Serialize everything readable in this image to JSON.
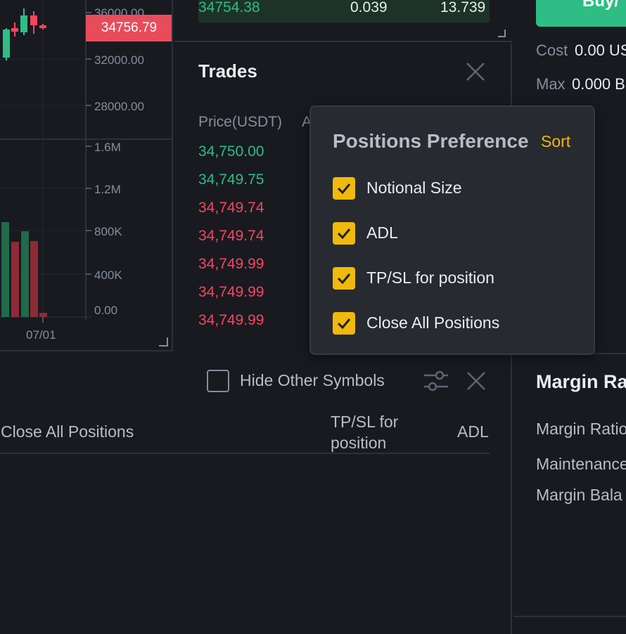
{
  "chart": {
    "price_axis": [
      "36000.00",
      "32000.00",
      "28000.00"
    ],
    "volume_axis": [
      "1.6M",
      "1.2M",
      "800K",
      "400K",
      "0.00"
    ],
    "time_label": "07/01",
    "last_price": "34756.79",
    "colors": {
      "up": "#2ebd85",
      "down": "#f6465d",
      "tag": "#e84c5b"
    }
  },
  "order_book": {
    "row": {
      "price": "34754.38",
      "amount": "0.039",
      "total": "13.739"
    }
  },
  "trades": {
    "title": "Trades",
    "header_price": "Price(USDT)",
    "header_amount": "A",
    "rows": [
      {
        "price": "34,750.00",
        "side": "up"
      },
      {
        "price": "34,749.75",
        "side": "up"
      },
      {
        "price": "34,749.74",
        "side": "down"
      },
      {
        "price": "34,749.74",
        "side": "down"
      },
      {
        "price": "34,749.99",
        "side": "down"
      },
      {
        "price": "34,749.99",
        "side": "down"
      },
      {
        "price": "34,749.99",
        "side": "down"
      }
    ]
  },
  "order_panel": {
    "buy_label": "Buy/",
    "cost_label": "Cost",
    "cost_value": "0.00 US",
    "max_label": "Max",
    "max_value": "0.000 B"
  },
  "positions": {
    "hide_other_symbols": "Hide Other Symbols",
    "columns": {
      "close_all": "Close All Positions",
      "tpsl_line1": "TP/SL for",
      "tpsl_line2": "position",
      "adl": "ADL"
    }
  },
  "margin": {
    "title": "Margin Ra",
    "rows": [
      "Margin Ratio",
      "Maintenance",
      "Margin Bala"
    ]
  },
  "popup": {
    "title": "Positions Preference",
    "sort_label": "Sort",
    "items": [
      {
        "label": "Notional Size",
        "checked": true
      },
      {
        "label": "ADL",
        "checked": true
      },
      {
        "label": "TP/SL for position",
        "checked": true
      },
      {
        "label": "Close All Positions",
        "checked": true
      }
    ],
    "accent": "#f0b90b"
  }
}
